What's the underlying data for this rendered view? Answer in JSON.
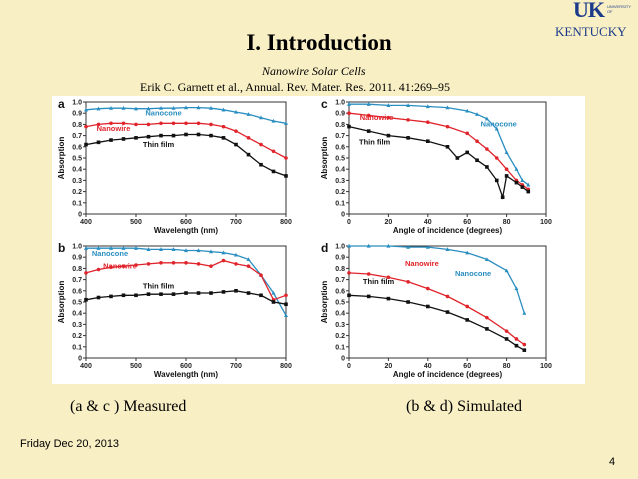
{
  "slide": {
    "title": "I. Introduction",
    "subtitle": "Nanowire Solar Cells",
    "citation": "Erik C. Garnett et al., Annual. Rev. Mater. Res. 2011. 41:269–95",
    "caption_left": "(a & c )  Measured",
    "caption_right": "(b & d)   Simulated",
    "date": "Friday Dec 20, 2013",
    "page_number": "4",
    "logo": {
      "uk": "UK",
      "university": "UNIVERSITY OF",
      "kentucky": "KENTUCKY"
    }
  },
  "colors": {
    "nanocone": "#2a8ec0",
    "nanowire": "#e0242b",
    "thin_film": "#111111",
    "background": "#f8efc4"
  },
  "chart_data": [
    {
      "panel_label": "a",
      "type": "line",
      "xlabel": "Wavelength (nm)",
      "ylabel": "Absorption",
      "xlim": [
        400,
        800
      ],
      "ylim": [
        0,
        1.0
      ],
      "xticks": [
        400,
        500,
        600,
        700,
        800
      ],
      "yticks": [
        0,
        0.1,
        0.2,
        0.3,
        0.4,
        0.5,
        0.6,
        0.7,
        0.8,
        0.9,
        1.0
      ],
      "annotations": [
        {
          "text": "Nanocone",
          "series": "Nanocone",
          "x": 555,
          "y": 0.88
        },
        {
          "text": "Nanowire",
          "series": "Nanowire",
          "x": 455,
          "y": 0.74
        },
        {
          "text": "Thin film",
          "series": "Thin film",
          "x": 545,
          "y": 0.6
        }
      ],
      "series": [
        {
          "name": "Nanocone",
          "color": "nanocone",
          "x": [
            400,
            425,
            450,
            475,
            500,
            525,
            550,
            575,
            600,
            625,
            650,
            675,
            700,
            725,
            750,
            775,
            800
          ],
          "y": [
            0.93,
            0.94,
            0.945,
            0.945,
            0.94,
            0.94,
            0.945,
            0.945,
            0.95,
            0.95,
            0.945,
            0.93,
            0.91,
            0.89,
            0.86,
            0.83,
            0.81
          ]
        },
        {
          "name": "Nanowire",
          "color": "nanowire",
          "x": [
            400,
            425,
            450,
            475,
            500,
            525,
            550,
            575,
            600,
            625,
            650,
            675,
            700,
            725,
            750,
            775,
            800
          ],
          "y": [
            0.78,
            0.8,
            0.81,
            0.81,
            0.8,
            0.8,
            0.81,
            0.81,
            0.81,
            0.81,
            0.8,
            0.78,
            0.74,
            0.68,
            0.62,
            0.56,
            0.5
          ]
        },
        {
          "name": "Thin film",
          "color": "thin_film",
          "x": [
            400,
            425,
            450,
            475,
            500,
            525,
            550,
            575,
            600,
            625,
            650,
            675,
            700,
            725,
            750,
            775,
            800
          ],
          "y": [
            0.62,
            0.64,
            0.66,
            0.67,
            0.68,
            0.69,
            0.7,
            0.7,
            0.71,
            0.71,
            0.7,
            0.68,
            0.62,
            0.53,
            0.44,
            0.38,
            0.34
          ]
        }
      ]
    },
    {
      "panel_label": "c",
      "type": "line",
      "xlabel": "Angle of incidence (degrees)",
      "ylabel": "Absorption",
      "xlim": [
        0,
        100
      ],
      "ylim": [
        0,
        1.0
      ],
      "xticks": [
        0,
        20,
        40,
        60,
        80,
        100
      ],
      "yticks": [
        0,
        0.1,
        0.2,
        0.3,
        0.4,
        0.5,
        0.6,
        0.7,
        0.8,
        0.9,
        1.0
      ],
      "annotations": [
        {
          "text": "Nanowire",
          "series": "Nanowire",
          "x": 14,
          "y": 0.84
        },
        {
          "text": "Nanocone",
          "series": "Nanocone",
          "x": 76,
          "y": 0.78
        },
        {
          "text": "Thin film",
          "series": "Thin film",
          "x": 13,
          "y": 0.62
        }
      ],
      "series": [
        {
          "name": "Nanocone",
          "color": "nanocone",
          "x": [
            0,
            10,
            20,
            30,
            40,
            50,
            60,
            65,
            70,
            75,
            80,
            85,
            88,
            91
          ],
          "y": [
            0.98,
            0.98,
            0.97,
            0.97,
            0.96,
            0.95,
            0.92,
            0.89,
            0.85,
            0.76,
            0.55,
            0.4,
            0.3,
            0.26
          ]
        },
        {
          "name": "Nanowire",
          "color": "nanowire",
          "x": [
            0,
            10,
            20,
            30,
            40,
            50,
            60,
            65,
            70,
            75,
            80,
            85,
            88,
            91
          ],
          "y": [
            0.9,
            0.88,
            0.86,
            0.84,
            0.82,
            0.78,
            0.72,
            0.65,
            0.58,
            0.5,
            0.4,
            0.3,
            0.26,
            0.22
          ]
        },
        {
          "name": "Thin film",
          "color": "thin_film",
          "x": [
            0,
            10,
            20,
            30,
            40,
            50,
            55,
            60,
            65,
            70,
            75,
            78,
            80,
            85,
            88,
            91
          ],
          "y": [
            0.78,
            0.74,
            0.7,
            0.68,
            0.65,
            0.6,
            0.5,
            0.55,
            0.48,
            0.42,
            0.3,
            0.15,
            0.34,
            0.28,
            0.24,
            0.2
          ]
        }
      ]
    },
    {
      "panel_label": "b",
      "type": "line",
      "xlabel": "Wavelength (nm)",
      "ylabel": "Absorption",
      "xlim": [
        400,
        800
      ],
      "ylim": [
        0,
        1.0
      ],
      "xticks": [
        400,
        500,
        600,
        700,
        800
      ],
      "yticks": [
        0,
        0.1,
        0.2,
        0.3,
        0.4,
        0.5,
        0.6,
        0.7,
        0.8,
        0.9,
        1.0
      ],
      "annotations": [
        {
          "text": "Nanocone",
          "series": "Nanocone",
          "x": 448,
          "y": 0.91
        },
        {
          "text": "Nanowire",
          "series": "Nanowire",
          "x": 468,
          "y": 0.8
        },
        {
          "text": "Thin film",
          "series": "Thin film",
          "x": 545,
          "y": 0.62
        }
      ],
      "series": [
        {
          "name": "Nanocone",
          "color": "nanocone",
          "x": [
            400,
            425,
            450,
            475,
            500,
            525,
            550,
            575,
            600,
            625,
            650,
            675,
            700,
            725,
            750,
            775,
            800
          ],
          "y": [
            0.98,
            0.98,
            0.98,
            0.98,
            0.98,
            0.97,
            0.97,
            0.97,
            0.96,
            0.96,
            0.95,
            0.94,
            0.92,
            0.88,
            0.74,
            0.58,
            0.38
          ]
        },
        {
          "name": "Nanowire",
          "color": "nanowire",
          "x": [
            400,
            425,
            450,
            475,
            500,
            525,
            550,
            575,
            600,
            625,
            650,
            675,
            700,
            725,
            750,
            775,
            800
          ],
          "y": [
            0.76,
            0.79,
            0.81,
            0.82,
            0.83,
            0.84,
            0.85,
            0.85,
            0.85,
            0.84,
            0.82,
            0.87,
            0.84,
            0.82,
            0.74,
            0.52,
            0.56
          ]
        },
        {
          "name": "Thin film",
          "color": "thin_film",
          "x": [
            400,
            425,
            450,
            475,
            500,
            525,
            550,
            575,
            600,
            625,
            650,
            675,
            700,
            725,
            750,
            775,
            800
          ],
          "y": [
            0.52,
            0.54,
            0.55,
            0.56,
            0.56,
            0.57,
            0.57,
            0.57,
            0.58,
            0.58,
            0.58,
            0.59,
            0.6,
            0.58,
            0.56,
            0.5,
            0.48
          ]
        }
      ]
    },
    {
      "panel_label": "d",
      "type": "line",
      "xlabel": "Angle of incidence (degrees)",
      "ylabel": "Absorption",
      "xlim": [
        0,
        100
      ],
      "ylim": [
        0,
        1.0
      ],
      "xticks": [
        0,
        20,
        40,
        60,
        80,
        100
      ],
      "yticks": [
        0,
        0.1,
        0.2,
        0.3,
        0.4,
        0.5,
        0.6,
        0.7,
        0.8,
        0.9,
        1.0
      ],
      "annotations": [
        {
          "text": "Nanowire",
          "series": "Nanowire",
          "x": 37,
          "y": 0.82
        },
        {
          "text": "Nanocone",
          "series": "Nanocone",
          "x": 63,
          "y": 0.73
        },
        {
          "text": "Thin film",
          "series": "Thin film",
          "x": 15,
          "y": 0.66
        }
      ],
      "series": [
        {
          "name": "Nanocone",
          "color": "nanocone",
          "x": [
            0,
            10,
            20,
            30,
            40,
            50,
            60,
            70,
            80,
            85,
            89
          ],
          "y": [
            1.0,
            1.0,
            1.0,
            0.99,
            0.99,
            0.97,
            0.94,
            0.88,
            0.78,
            0.62,
            0.4
          ]
        },
        {
          "name": "Nanowire",
          "color": "nanowire",
          "x": [
            0,
            10,
            20,
            30,
            40,
            50,
            60,
            70,
            80,
            85,
            89
          ],
          "y": [
            0.76,
            0.75,
            0.72,
            0.68,
            0.62,
            0.55,
            0.46,
            0.36,
            0.24,
            0.17,
            0.12
          ]
        },
        {
          "name": "Thin film",
          "color": "thin_film",
          "x": [
            0,
            10,
            20,
            30,
            40,
            50,
            60,
            70,
            80,
            85,
            89
          ],
          "y": [
            0.56,
            0.55,
            0.53,
            0.5,
            0.46,
            0.41,
            0.34,
            0.26,
            0.17,
            0.11,
            0.07
          ]
        }
      ]
    }
  ]
}
